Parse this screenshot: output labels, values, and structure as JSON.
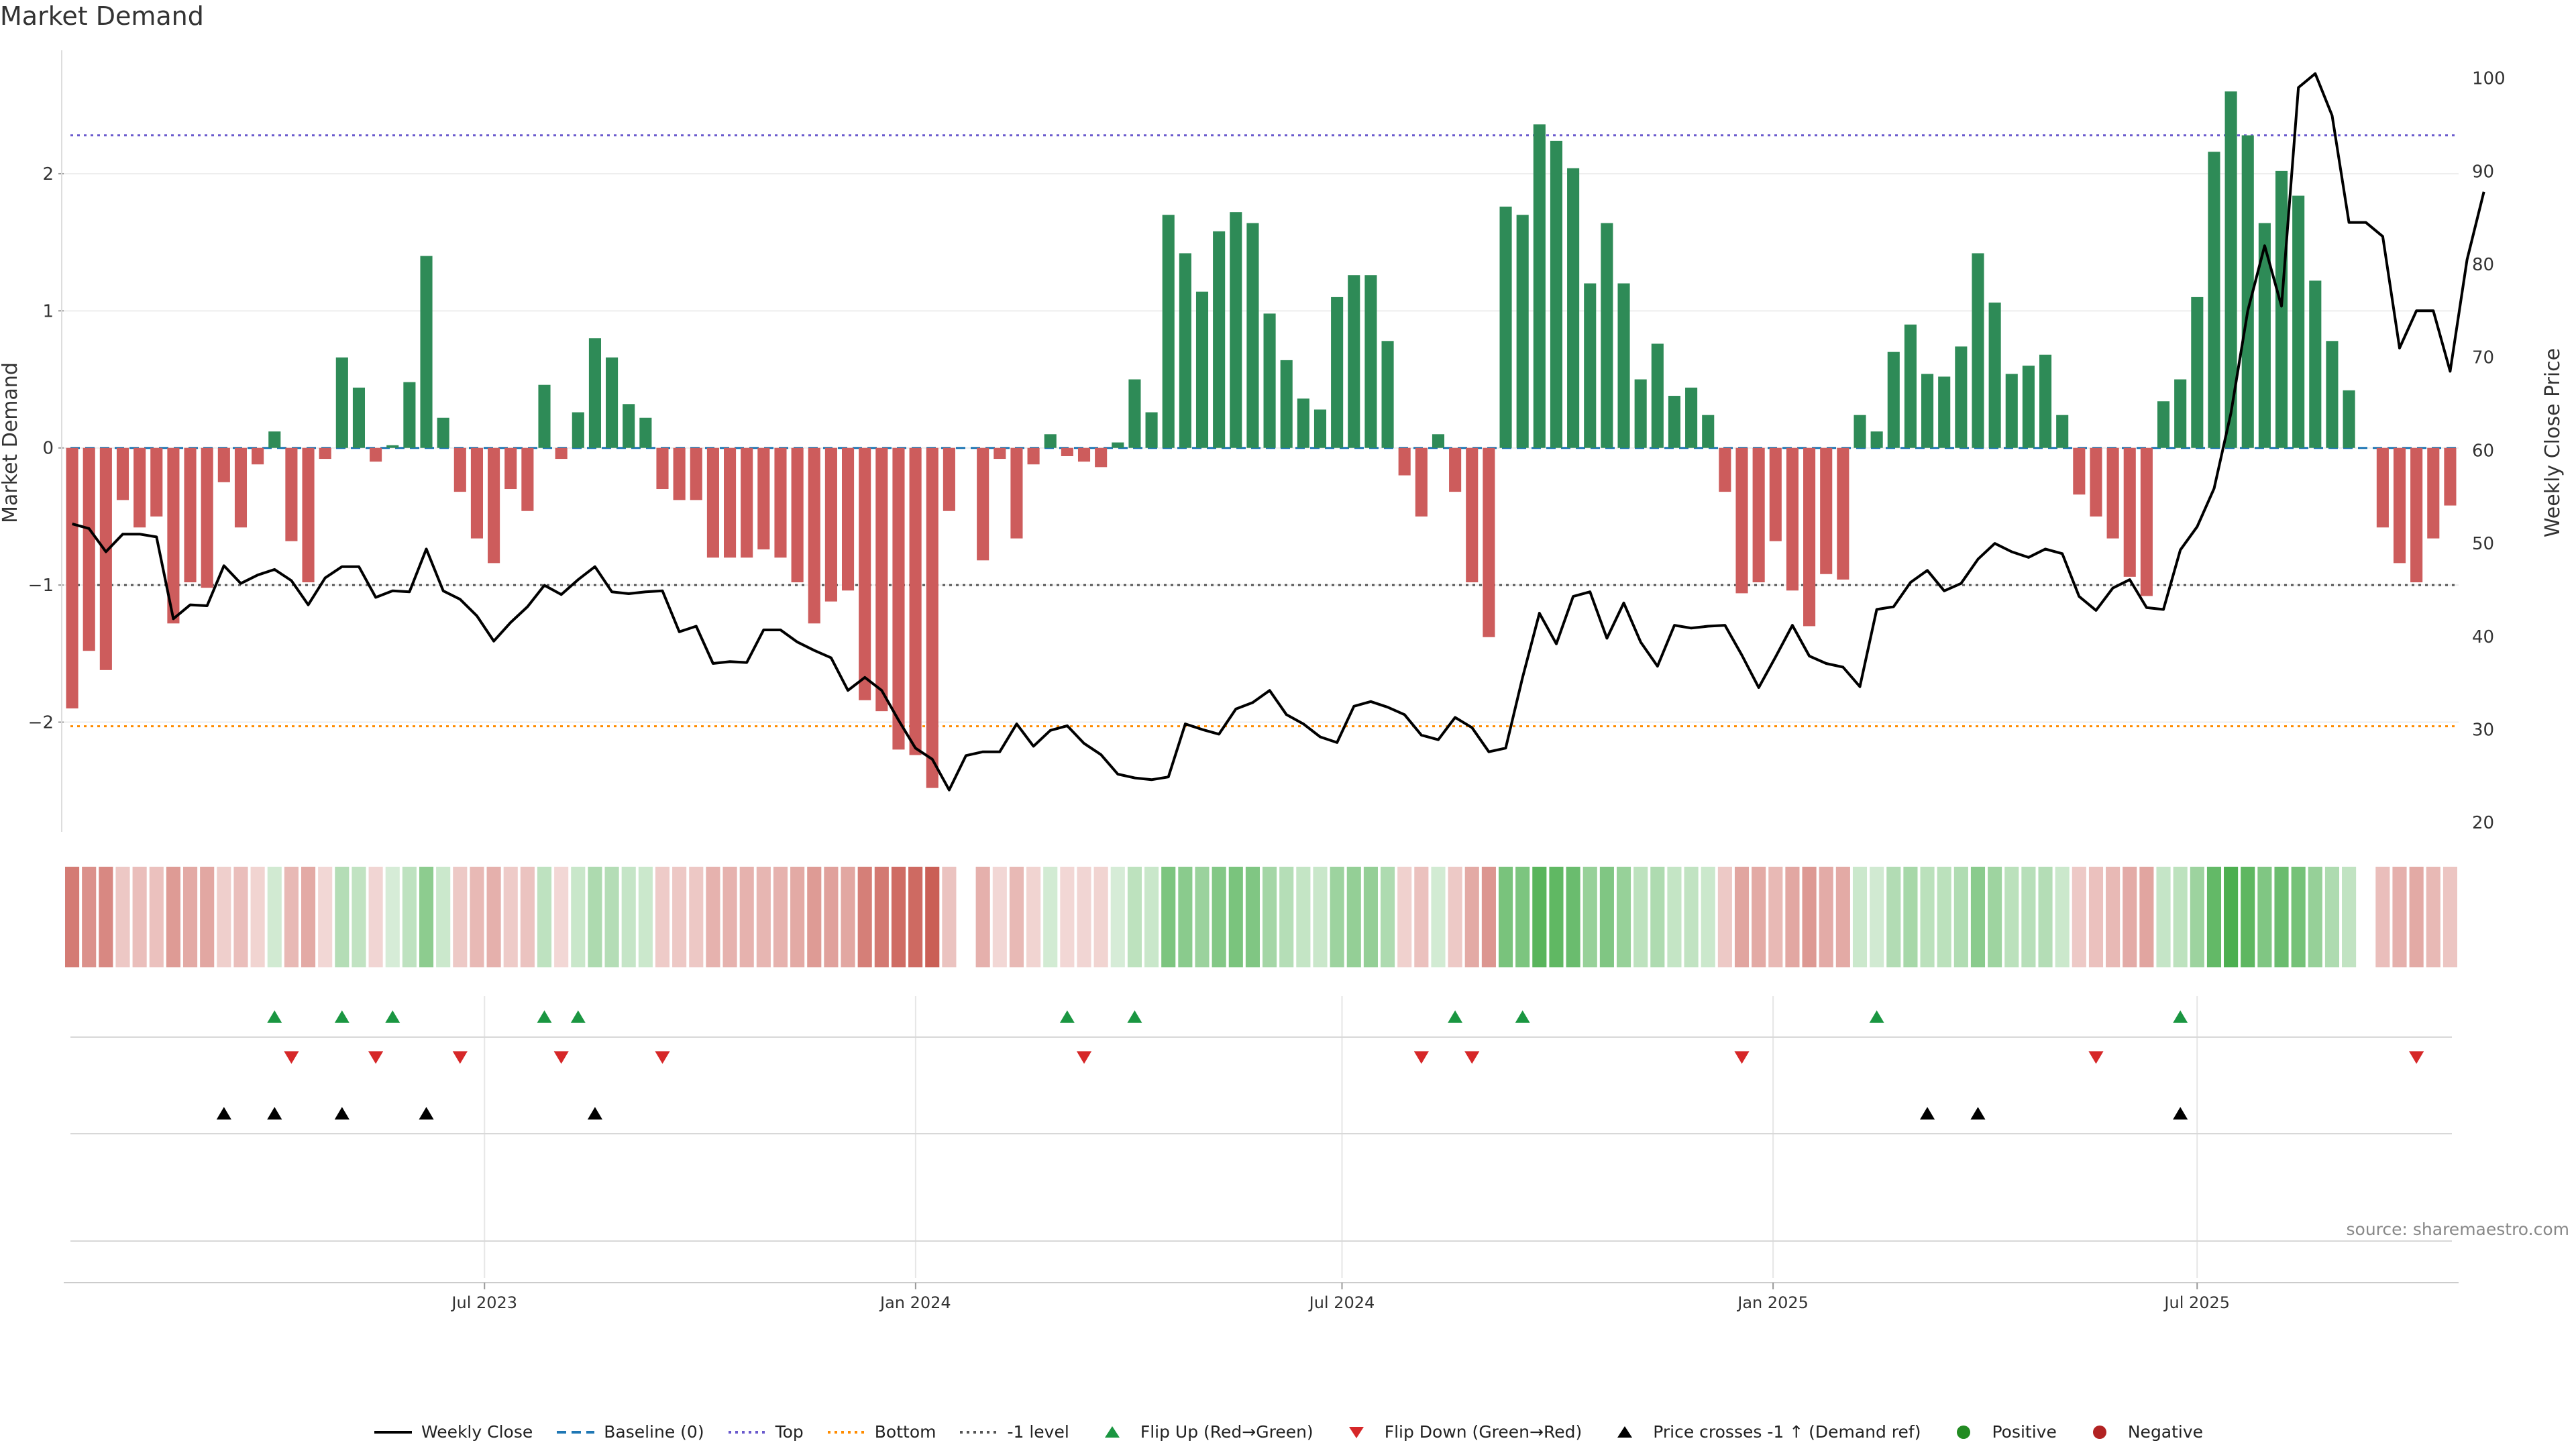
{
  "page": {
    "title": "Market Demand",
    "source": "source: sharemaestro.com"
  },
  "colors": {
    "positive": "#2e8b57",
    "negative": "#cd5c5c",
    "price": "#000000",
    "top_line": "#6a5acd",
    "bottom_line": "#ff8c00",
    "minus1_line": "#555555",
    "baseline": "#1f77b4",
    "flip_up": "#1a9641",
    "flip_down": "#d62728",
    "cross": "#000000"
  },
  "chart_data": {
    "type": "bar",
    "title": "Market Demand",
    "ylabel": "Market Demand",
    "y2label": "Weekly Close Price",
    "ylim": [
      -2.8,
      2.9
    ],
    "y2lim": [
      19,
      103
    ],
    "yticks": [
      -2,
      -1,
      0,
      1,
      2
    ],
    "y2ticks": [
      20,
      30,
      40,
      50,
      60,
      70,
      80,
      90,
      100
    ],
    "x_start": "2023-01-06",
    "x_end": "2025-10-17",
    "x_ticks": [
      {
        "date": "2023-07-01",
        "label": "Jul 2023"
      },
      {
        "date": "2024-01-01",
        "label": "Jan 2024"
      },
      {
        "date": "2024-07-01",
        "label": "Jul 2024"
      },
      {
        "date": "2025-01-01",
        "label": "Jan 2025"
      },
      {
        "date": "2025-07-01",
        "label": "Jul 2025"
      }
    ],
    "reference_lines": {
      "top": 2.28,
      "bottom": -2.03,
      "minus1": -1.0,
      "baseline": 0
    },
    "demand": [
      -1.9,
      -1.48,
      -1.62,
      -0.38,
      -0.58,
      -0.5,
      -1.28,
      -0.98,
      -1.02,
      -0.25,
      -0.58,
      -0.12,
      0.12,
      -0.68,
      -0.98,
      -0.08,
      0.66,
      0.44,
      -0.1,
      0.02,
      0.48,
      1.4,
      0.22,
      -0.32,
      -0.66,
      -0.84,
      -0.3,
      -0.46,
      0.46,
      -0.08,
      0.26,
      0.8,
      0.66,
      0.32,
      0.22,
      -0.3,
      -0.38,
      -0.38,
      -0.8,
      -0.8,
      -0.8,
      -0.74,
      -0.8,
      -0.98,
      -1.28,
      -1.12,
      -1.04,
      -1.84,
      -1.92,
      -2.2,
      -2.24,
      -2.48,
      -0.46,
      0,
      -0.82,
      -0.08,
      -0.66,
      -0.12,
      0.1,
      -0.06,
      -0.1,
      -0.14,
      0.04,
      0.5,
      0.26,
      1.7,
      1.42,
      1.14,
      1.58,
      1.72,
      1.64,
      0.98,
      0.64,
      0.36,
      0.28,
      1.1,
      1.26,
      1.26,
      0.78,
      -0.2,
      -0.5,
      0.1,
      -0.32,
      -0.98,
      -1.38,
      1.76,
      1.7,
      2.36,
      2.24,
      2.04,
      1.2,
      1.64,
      1.2,
      0.5,
      0.76,
      0.38,
      0.44,
      0.24,
      -0.32,
      -1.06,
      -0.98,
      -0.68,
      -1.04,
      -1.3,
      -0.92,
      -0.96,
      0.24,
      0.12,
      0.7,
      0.9,
      0.54,
      0.52,
      0.74,
      1.42,
      1.06,
      0.54,
      0.6,
      0.68,
      0.24,
      -0.34,
      -0.5,
      -0.66,
      -0.94,
      -1.08,
      0.34,
      0.5,
      1.1,
      2.16,
      2.6,
      2.28,
      1.64,
      2.02,
      1.84,
      1.22,
      0.78,
      0.42,
      0,
      -0.58,
      -0.84,
      -0.98,
      -0.66,
      -0.42
    ],
    "price": [
      52.1,
      51.6,
      49.1,
      51.0,
      51.0,
      50.7,
      41.9,
      43.4,
      43.3,
      47.6,
      45.7,
      46.6,
      47.2,
      46.0,
      43.4,
      46.3,
      47.5,
      47.5,
      44.2,
      44.9,
      44.8,
      49.4,
      44.9,
      44.0,
      42.2,
      39.5,
      41.5,
      43.2,
      45.5,
      44.5,
      46.1,
      47.5,
      44.8,
      44.6,
      44.8,
      44.9,
      40.5,
      41.1,
      37.1,
      37.3,
      37.2,
      40.7,
      40.7,
      39.4,
      38.5,
      37.7,
      34.2,
      35.6,
      34.2,
      31.0,
      28.0,
      26.8,
      23.5,
      27.2,
      27.6,
      27.6,
      30.6,
      28.2,
      29.9,
      30.4,
      28.5,
      27.3,
      25.2,
      24.8,
      24.6,
      24.9,
      30.6,
      30.0,
      29.5,
      32.2,
      32.9,
      34.2,
      31.6,
      30.6,
      29.2,
      28.6,
      32.5,
      33.0,
      32.4,
      31.6,
      29.4,
      28.9,
      31.3,
      30.2,
      27.6,
      28.0,
      35.6,
      42.5,
      39.2,
      44.3,
      44.8,
      39.8,
      43.6,
      39.4,
      36.8,
      41.2,
      40.9,
      41.1,
      41.2,
      38.0,
      34.5,
      37.8,
      41.2,
      37.9,
      37.1,
      36.7,
      34.6,
      42.9,
      43.2,
      45.8,
      47.1,
      44.9,
      45.7,
      48.3,
      50.0,
      49.1,
      48.5,
      49.4,
      48.9,
      44.3,
      42.8,
      45.2,
      46.1,
      43.1,
      42.9,
      49.3,
      51.8,
      55.9,
      64.0,
      75.0,
      82.0,
      75.5,
      99.0,
      100.5,
      96.0,
      84.5,
      84.5,
      83.0,
      71.0,
      75.0,
      75.0,
      68.5,
      80.5,
      87.8
    ],
    "flip_up_index": [
      12,
      16,
      19,
      28,
      30,
      59,
      63,
      82,
      86,
      107,
      125
    ],
    "flip_down_index": [
      13,
      18,
      23,
      29,
      35,
      60,
      80,
      83,
      99,
      120,
      139
    ],
    "price_cross_index": [
      9,
      12,
      16,
      21,
      31,
      110,
      113,
      125
    ],
    "series": [
      {
        "name": "Weekly Close"
      },
      {
        "name": "Baseline (0)"
      },
      {
        "name": "Top"
      },
      {
        "name": "Bottom"
      },
      {
        "name": "-1 level"
      },
      {
        "name": "Flip Up (Red→Green)"
      },
      {
        "name": "Flip Down (Green→Red)"
      },
      {
        "name": "Price crosses -1 ↑ (Demand ref)"
      },
      {
        "name": "Positive"
      },
      {
        "name": "Negative"
      }
    ]
  },
  "legend": [
    {
      "label": "Weekly Close",
      "symbol": "line",
      "color": "#000000"
    },
    {
      "label": "Baseline (0)",
      "symbol": "dash",
      "color": "#1f77b4"
    },
    {
      "label": "Top",
      "symbol": "dot",
      "color": "#6a5acd"
    },
    {
      "label": "Bottom",
      "symbol": "dot",
      "color": "#ff8c00"
    },
    {
      "label": "-1 level",
      "symbol": "dot",
      "color": "#555555"
    },
    {
      "label": "Flip Up (Red→Green)",
      "symbol": "tri-up",
      "color": "#1a9641"
    },
    {
      "label": "Flip Down (Green→Red)",
      "symbol": "tri-down",
      "color": "#d62728"
    },
    {
      "label": "Price crosses -1 ↑ (Demand ref)",
      "symbol": "tri-up",
      "color": "#000000"
    },
    {
      "label": "Positive",
      "symbol": "circle",
      "color": "#228b22"
    },
    {
      "label": "Negative",
      "symbol": "circle",
      "color": "#b22222"
    }
  ]
}
